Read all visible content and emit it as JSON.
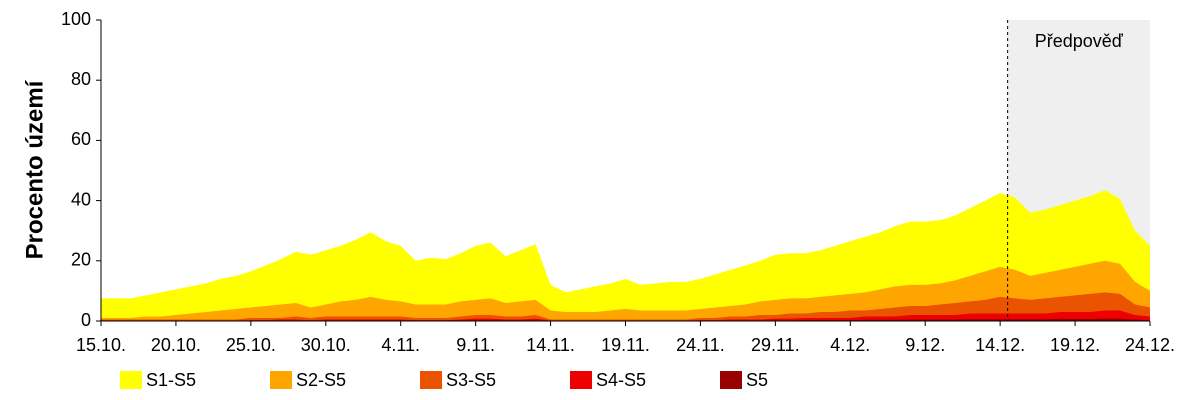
{
  "chart_data": {
    "type": "area",
    "ylabel": "Procento území",
    "categories": [
      "15.10.",
      null,
      null,
      null,
      null,
      "20.10.",
      null,
      null,
      null,
      null,
      "25.10.",
      null,
      null,
      null,
      null,
      "30.10.",
      null,
      null,
      null,
      null,
      "4.11.",
      null,
      null,
      null,
      null,
      "9.11.",
      null,
      null,
      null,
      null,
      "14.11.",
      null,
      null,
      null,
      null,
      "19.11.",
      null,
      null,
      null,
      null,
      "24.11.",
      null,
      null,
      null,
      null,
      "29.11.",
      null,
      null,
      null,
      null,
      "4.12.",
      null,
      null,
      null,
      null,
      "9.12.",
      null,
      null,
      null,
      null,
      "14.12.",
      null,
      null,
      null,
      null,
      "19.12.",
      null,
      null,
      null,
      null,
      "24.12."
    ],
    "ylim": [
      0,
      100
    ],
    "yticks": [
      0,
      20,
      40,
      60,
      80,
      100
    ],
    "forecast": {
      "label": "Předpověď",
      "from": 60.5
    },
    "series": [
      {
        "name": "S1-S5",
        "color": "#ffff00",
        "values": [
          7.5,
          7.5,
          7.5,
          8.5,
          9.5,
          10.5,
          11.5,
          12.5,
          14,
          15,
          16.5,
          18.5,
          20.5,
          23,
          22,
          23.5,
          25,
          27,
          29.5,
          26.5,
          25,
          20,
          21,
          20.5,
          22.5,
          25,
          26,
          21.5,
          23.5,
          25.5,
          12,
          9.5,
          10.5,
          11.5,
          12.5,
          14,
          12,
          12.5,
          13,
          13,
          14,
          15.5,
          17,
          18.5,
          20,
          22,
          22.5,
          22.5,
          23.5,
          25,
          26.5,
          28,
          29.5,
          31.5,
          33,
          33,
          33.5,
          35,
          37.5,
          40,
          42.5,
          41,
          36,
          37,
          38.5,
          40,
          41.5,
          43.5,
          40.5,
          30,
          25
        ]
      },
      {
        "name": "S2-S5",
        "color": "#ffa500",
        "values": [
          1,
          1,
          1,
          1.5,
          1.5,
          2,
          2.5,
          3,
          3.5,
          4,
          4.5,
          5,
          5.5,
          6,
          4.5,
          5.5,
          6.5,
          7,
          8,
          7,
          6.5,
          5.5,
          5.5,
          5.5,
          6.5,
          7,
          7.5,
          6,
          6.5,
          7,
          3.5,
          3,
          3,
          3,
          3.5,
          4,
          3.5,
          3.5,
          3.5,
          3.5,
          4,
          4.5,
          5,
          5.5,
          6.5,
          7,
          7.5,
          7.5,
          8,
          8.5,
          9,
          9.5,
          10.5,
          11.5,
          12,
          12,
          12.5,
          13.5,
          15,
          16.5,
          18,
          17,
          15,
          16,
          17,
          18,
          19,
          20,
          19,
          13,
          10
        ]
      },
      {
        "name": "S3-S5",
        "color": "#ea5400",
        "values": [
          0.5,
          0.5,
          0.5,
          0.5,
          0.5,
          0.5,
          0.5,
          0.5,
          0.5,
          0.5,
          1,
          1,
          1,
          1.5,
          1,
          1.5,
          1.5,
          1.5,
          1.5,
          1.5,
          1.5,
          1,
          1,
          1,
          1.5,
          2,
          2,
          1.5,
          1.5,
          2,
          0.5,
          0.5,
          0.5,
          0.5,
          0.5,
          0.5,
          0.5,
          0.5,
          0.5,
          0.5,
          1,
          1,
          1.5,
          1.5,
          2,
          2,
          2.5,
          2.5,
          3,
          3,
          3.5,
          3.5,
          4,
          4.5,
          5,
          5,
          5.5,
          6,
          6.5,
          7,
          8,
          7.5,
          7,
          7.5,
          8,
          8.5,
          9,
          9.5,
          9,
          5.5,
          4.5
        ]
      },
      {
        "name": "S4-S5",
        "color": "#ee0000",
        "values": [
          0.2,
          0.2,
          0.2,
          0.2,
          0.2,
          0.2,
          0.2,
          0.2,
          0.2,
          0.2,
          0.3,
          0.3,
          0.5,
          0.5,
          0.3,
          0.5,
          0.5,
          0.5,
          0.5,
          0.5,
          0.5,
          0.3,
          0.3,
          0.3,
          0.5,
          0.8,
          0.8,
          0.5,
          0.5,
          0.8,
          0.2,
          0.2,
          0.2,
          0.2,
          0.2,
          0.2,
          0.2,
          0.2,
          0.2,
          0.2,
          0.3,
          0.3,
          0.5,
          0.5,
          0.5,
          0.8,
          0.8,
          1,
          1,
          1,
          1,
          1.5,
          1.5,
          1.5,
          2,
          2,
          2,
          2,
          2.5,
          2.5,
          2.5,
          2.5,
          2.5,
          2.5,
          3,
          3,
          3,
          3.5,
          3.5,
          2,
          1.5
        ]
      },
      {
        "name": "S5",
        "color": "#990000",
        "values": [
          0.1,
          0.1,
          0.1,
          0.1,
          0.1,
          0.1,
          0.1,
          0.1,
          0.1,
          0.1,
          0.1,
          0.1,
          0.1,
          0.1,
          0.1,
          0.1,
          0.1,
          0.2,
          0.2,
          0.2,
          0.2,
          0.2,
          0.2,
          0.2,
          0.2,
          0.2,
          0.2,
          0.2,
          0.2,
          0.2,
          0.1,
          0.1,
          0.1,
          0.1,
          0.1,
          0.1,
          0.1,
          0.1,
          0.1,
          0.1,
          0.1,
          0.1,
          0.1,
          0.1,
          0.1,
          0.1,
          0.1,
          0.3,
          0.3,
          0.3,
          0.3,
          0.4,
          0.4,
          0.4,
          0.5,
          0.5,
          0.5,
          0.5,
          0.6,
          0.6,
          0.6,
          0.6,
          0.6,
          0.6,
          0.7,
          0.7,
          0.7,
          0.8,
          0.8,
          0.5,
          0.3
        ]
      }
    ]
  }
}
